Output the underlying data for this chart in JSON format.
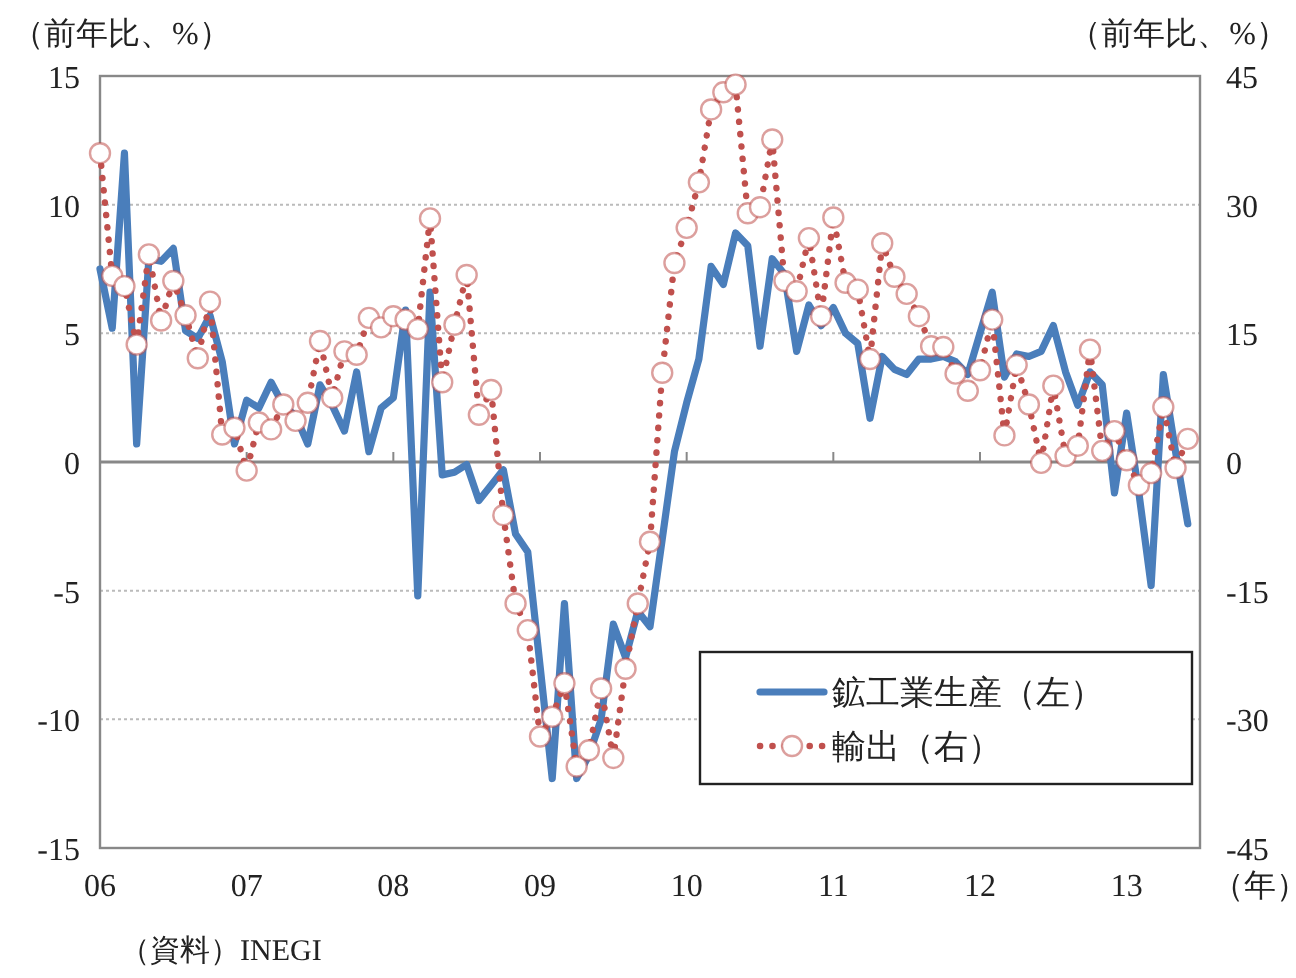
{
  "chart_data": {
    "type": "line",
    "ylabel": "（前年比、%）",
    "y2label": "（前年比、%）",
    "xlabel": "（年）",
    "annotations": [
      "（資料）INEGI"
    ],
    "x": [
      "2006-01",
      "2006-02",
      "2006-03",
      "2006-04",
      "2006-05",
      "2006-06",
      "2006-07",
      "2006-08",
      "2006-09",
      "2006-10",
      "2006-11",
      "2006-12",
      "2007-01",
      "2007-02",
      "2007-03",
      "2007-04",
      "2007-05",
      "2007-06",
      "2007-07",
      "2007-08",
      "2007-09",
      "2007-10",
      "2007-11",
      "2007-12",
      "2008-01",
      "2008-02",
      "2008-03",
      "2008-04",
      "2008-05",
      "2008-06",
      "2008-07",
      "2008-08",
      "2008-09",
      "2008-10",
      "2008-11",
      "2008-12",
      "2009-01",
      "2009-02",
      "2009-03",
      "2009-04",
      "2009-05",
      "2009-06",
      "2009-07",
      "2009-08",
      "2009-09",
      "2009-10",
      "2009-11",
      "2009-12",
      "2010-01",
      "2010-02",
      "2010-03",
      "2010-04",
      "2010-05",
      "2010-06",
      "2010-07",
      "2010-08",
      "2010-09",
      "2010-10",
      "2010-11",
      "2010-12",
      "2011-01",
      "2011-02",
      "2011-03",
      "2011-04",
      "2011-05",
      "2011-06",
      "2011-07",
      "2011-08",
      "2011-09",
      "2011-10",
      "2011-11",
      "2011-12",
      "2012-01",
      "2012-02",
      "2012-03",
      "2012-04",
      "2012-05",
      "2012-06",
      "2012-07",
      "2012-08",
      "2012-09",
      "2012-10",
      "2012-11",
      "2012-12",
      "2013-01",
      "2013-02",
      "2013-03",
      "2013-04",
      "2013-05",
      "2013-06"
    ],
    "xlim": [
      "2006-01",
      "2013-07"
    ],
    "xticks": [
      {
        "value": "2006-01",
        "label": "06"
      },
      {
        "value": "2007-01",
        "label": "07"
      },
      {
        "value": "2008-01",
        "label": "08"
      },
      {
        "value": "2009-01",
        "label": "09"
      },
      {
        "value": "2010-01",
        "label": "10"
      },
      {
        "value": "2011-01",
        "label": "11"
      },
      {
        "value": "2012-01",
        "label": "12"
      },
      {
        "value": "2013-01",
        "label": "13"
      }
    ],
    "ylim": [
      -15,
      15
    ],
    "yticks": [
      -15,
      -10,
      -5,
      0,
      5,
      10,
      15
    ],
    "y2lim": [
      -45,
      45
    ],
    "y2ticks": [
      -45,
      -30,
      -15,
      0,
      15,
      30,
      45
    ],
    "grid": "y",
    "legend": "bottom right",
    "series": [
      {
        "name": "鉱工業生産（左）",
        "color": "#4a7ebb",
        "marker": "none",
        "line_style": "solid",
        "values": [
          7.5,
          5.2,
          12.0,
          0.7,
          7.9,
          7.8,
          8.3,
          5.1,
          4.8,
          5.7,
          3.9,
          0.7,
          2.4,
          2.1,
          3.1,
          2.2,
          1.8,
          0.7,
          3.0,
          2.2,
          1.2,
          3.5,
          0.4,
          2.1,
          2.5,
          5.9,
          -5.2,
          6.6,
          -0.5,
          -0.4,
          -0.1,
          -1.5,
          -0.9,
          -0.3,
          -2.8,
          -3.5,
          -7.9,
          -12.3,
          -5.5,
          -12.3,
          -11.4,
          -10.0,
          -6.3,
          -7.6,
          -5.8,
          -6.4,
          -3.0,
          0.4,
          2.3,
          4.0,
          7.6,
          6.9,
          8.9,
          8.4,
          4.5,
          7.9,
          7.3,
          4.3,
          6.1,
          5.3,
          6.0,
          5.0,
          4.6,
          1.7,
          4.1,
          3.6,
          3.4,
          4.0,
          4.0,
          4.1,
          3.9,
          3.4,
          5.0,
          6.6,
          3.3,
          4.2,
          4.1,
          4.3,
          5.3,
          3.5,
          2.2,
          3.5,
          3.0,
          -1.2,
          1.9,
          -1.2,
          -4.8,
          3.4,
          0.4,
          -2.4
        ]
      },
      {
        "name": "輸出（右）",
        "color": "#c0504d",
        "axis": "y2",
        "marker": "circle",
        "line_style": "dotted",
        "values": [
          36.0,
          21.7,
          20.5,
          13.7,
          24.2,
          16.5,
          21.1,
          17.1,
          12.1,
          18.7,
          3.2,
          4.0,
          -1.0,
          4.6,
          3.8,
          6.7,
          4.8,
          6.9,
          14.1,
          7.5,
          12.9,
          12.5,
          16.8,
          15.7,
          17.0,
          16.6,
          15.5,
          28.4,
          9.3,
          16.0,
          21.8,
          5.5,
          8.4,
          -6.2,
          -16.5,
          -19.6,
          -32.0,
          -29.7,
          -25.8,
          -35.5,
          -33.6,
          -26.4,
          -34.5,
          -24.1,
          -16.5,
          -9.3,
          10.4,
          23.2,
          27.3,
          32.6,
          41.1,
          43.1,
          44.0,
          29.0,
          29.7,
          37.6,
          21.1,
          19.9,
          26.1,
          17.0,
          28.5,
          20.9,
          20.1,
          12.0,
          25.5,
          21.6,
          19.6,
          17.0,
          13.5,
          13.4,
          10.3,
          8.3,
          10.7,
          16.6,
          3.1,
          11.3,
          6.7,
          -0.1,
          8.9,
          0.7,
          1.9,
          13.1,
          1.3,
          3.6,
          0.2,
          -2.7,
          -1.3,
          6.4,
          -0.7,
          2.7
        ]
      }
    ]
  }
}
